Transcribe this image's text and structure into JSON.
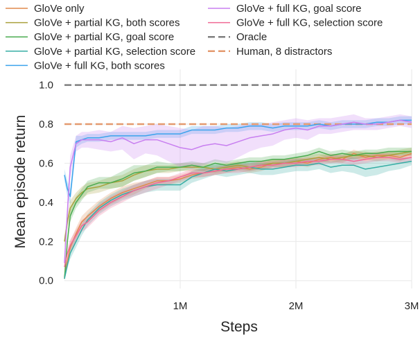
{
  "chart_data": {
    "type": "line",
    "xlabel": "Steps",
    "ylabel": "Mean episode return",
    "xlim": [
      0,
      3000000
    ],
    "ylim": [
      -0.04,
      1.08
    ],
    "xticks": [
      {
        "value": 1000000,
        "label": "1M"
      },
      {
        "value": 2000000,
        "label": "2M"
      },
      {
        "value": 3000000,
        "label": "3M"
      }
    ],
    "yticks": [
      {
        "value": 0.0,
        "label": "0.0"
      },
      {
        "value": 0.2,
        "label": "0.2"
      },
      {
        "value": 0.4,
        "label": "0.4"
      },
      {
        "value": 0.6,
        "label": "0.6"
      },
      {
        "value": 0.8,
        "label": "0.8"
      },
      {
        "value": 1.0,
        "label": "1.0"
      }
    ],
    "grid": true,
    "legend": "top",
    "x": [
      0,
      25000,
      50000,
      100000,
      150000,
      200000,
      300000,
      400000,
      500000,
      600000,
      700000,
      800000,
      900000,
      1000000,
      1100000,
      1200000,
      1300000,
      1400000,
      1500000,
      1600000,
      1700000,
      1800000,
      1900000,
      2000000,
      2100000,
      2200000,
      2300000,
      2400000,
      2500000,
      2600000,
      2700000,
      2800000,
      2900000,
      3000000
    ],
    "series": [
      {
        "name": "GloVe only",
        "color": "#e1894c",
        "values": [
          0.02,
          0.1,
          0.17,
          0.24,
          0.3,
          0.33,
          0.38,
          0.42,
          0.45,
          0.47,
          0.49,
          0.51,
          0.51,
          0.52,
          0.54,
          0.55,
          0.56,
          0.57,
          0.58,
          0.57,
          0.58,
          0.6,
          0.6,
          0.61,
          0.6,
          0.62,
          0.63,
          0.62,
          0.65,
          0.63,
          0.64,
          0.64,
          0.63,
          0.65
        ],
        "band_halfwidth": [
          0.01,
          0.02,
          0.03,
          0.03,
          0.03,
          0.03,
          0.03,
          0.03,
          0.03,
          0.03,
          0.02,
          0.02,
          0.02,
          0.02,
          0.02,
          0.02,
          0.02,
          0.02,
          0.02,
          0.02,
          0.02,
          0.02,
          0.02,
          0.02,
          0.02,
          0.02,
          0.02,
          0.02,
          0.02,
          0.02,
          0.02,
          0.02,
          0.02,
          0.02
        ]
      },
      {
        "name": "GloVe + partial KG, both scores",
        "color": "#a9a13b",
        "values": [
          0.2,
          0.3,
          0.37,
          0.42,
          0.45,
          0.47,
          0.48,
          0.5,
          0.51,
          0.54,
          0.56,
          0.57,
          0.57,
          0.58,
          0.58,
          0.58,
          0.57,
          0.58,
          0.59,
          0.58,
          0.59,
          0.6,
          0.6,
          0.61,
          0.62,
          0.63,
          0.62,
          0.63,
          0.64,
          0.64,
          0.63,
          0.64,
          0.65,
          0.66
        ],
        "band_halfwidth": [
          0.03,
          0.04,
          0.04,
          0.03,
          0.03,
          0.03,
          0.03,
          0.03,
          0.03,
          0.03,
          0.03,
          0.02,
          0.02,
          0.02,
          0.02,
          0.02,
          0.02,
          0.02,
          0.02,
          0.02,
          0.02,
          0.02,
          0.02,
          0.02,
          0.02,
          0.02,
          0.02,
          0.02,
          0.02,
          0.02,
          0.02,
          0.02,
          0.02,
          0.02
        ]
      },
      {
        "name": "GloVe + partial KG, goal score",
        "color": "#4aab4f",
        "values": [
          0.01,
          0.2,
          0.33,
          0.4,
          0.44,
          0.48,
          0.5,
          0.5,
          0.52,
          0.55,
          0.56,
          0.58,
          0.58,
          0.58,
          0.59,
          0.58,
          0.6,
          0.59,
          0.6,
          0.61,
          0.61,
          0.62,
          0.62,
          0.63,
          0.64,
          0.66,
          0.64,
          0.65,
          0.64,
          0.65,
          0.65,
          0.66,
          0.66,
          0.66
        ],
        "band_halfwidth": [
          0.01,
          0.03,
          0.03,
          0.03,
          0.03,
          0.03,
          0.03,
          0.03,
          0.04,
          0.04,
          0.03,
          0.03,
          0.02,
          0.02,
          0.02,
          0.02,
          0.02,
          0.02,
          0.02,
          0.02,
          0.02,
          0.02,
          0.02,
          0.02,
          0.02,
          0.02,
          0.02,
          0.02,
          0.02,
          0.02,
          0.02,
          0.02,
          0.02,
          0.02
        ]
      },
      {
        "name": "GloVe + partial KG, selection score",
        "color": "#36ada4",
        "values": [
          0.01,
          0.08,
          0.14,
          0.2,
          0.26,
          0.31,
          0.37,
          0.41,
          0.44,
          0.46,
          0.48,
          0.49,
          0.49,
          0.49,
          0.53,
          0.55,
          0.57,
          0.56,
          0.57,
          0.58,
          0.57,
          0.57,
          0.58,
          0.59,
          0.59,
          0.6,
          0.58,
          0.59,
          0.59,
          0.57,
          0.58,
          0.59,
          0.6,
          0.61
        ],
        "band_halfwidth": [
          0.01,
          0.02,
          0.03,
          0.03,
          0.03,
          0.03,
          0.03,
          0.03,
          0.03,
          0.03,
          0.03,
          0.03,
          0.03,
          0.03,
          0.03,
          0.03,
          0.03,
          0.03,
          0.03,
          0.03,
          0.03,
          0.03,
          0.03,
          0.03,
          0.03,
          0.03,
          0.03,
          0.03,
          0.04,
          0.04,
          0.04,
          0.03,
          0.03,
          0.02
        ]
      },
      {
        "name": "GloVe + full KG, both scores",
        "color": "#3ba3ec",
        "values": [
          0.54,
          0.47,
          0.43,
          0.71,
          0.72,
          0.73,
          0.73,
          0.74,
          0.74,
          0.74,
          0.74,
          0.75,
          0.75,
          0.75,
          0.77,
          0.77,
          0.77,
          0.78,
          0.78,
          0.79,
          0.79,
          0.78,
          0.79,
          0.79,
          0.79,
          0.8,
          0.79,
          0.8,
          0.8,
          0.8,
          0.81,
          0.81,
          0.82,
          0.82
        ],
        "band_halfwidth": [
          0.03,
          0.04,
          0.04,
          0.03,
          0.02,
          0.02,
          0.02,
          0.02,
          0.02,
          0.02,
          0.02,
          0.02,
          0.02,
          0.02,
          0.02,
          0.02,
          0.02,
          0.02,
          0.02,
          0.02,
          0.02,
          0.02,
          0.02,
          0.02,
          0.02,
          0.02,
          0.02,
          0.02,
          0.02,
          0.02,
          0.02,
          0.02,
          0.02,
          0.02
        ]
      },
      {
        "name": "GloVe + full KG, goal score",
        "color": "#c87ff0",
        "values": [
          0.09,
          0.35,
          0.58,
          0.7,
          0.72,
          0.72,
          0.72,
          0.71,
          0.73,
          0.7,
          0.72,
          0.72,
          0.7,
          0.68,
          0.67,
          0.69,
          0.7,
          0.69,
          0.71,
          0.73,
          0.74,
          0.75,
          0.77,
          0.78,
          0.77,
          0.79,
          0.79,
          0.8,
          0.81,
          0.8,
          0.8,
          0.81,
          0.82,
          0.81
        ],
        "band_halfwidth": [
          0.03,
          0.06,
          0.06,
          0.04,
          0.04,
          0.04,
          0.05,
          0.05,
          0.06,
          0.08,
          0.07,
          0.08,
          0.09,
          0.1,
          0.1,
          0.1,
          0.09,
          0.09,
          0.08,
          0.07,
          0.06,
          0.06,
          0.05,
          0.05,
          0.05,
          0.04,
          0.04,
          0.04,
          0.04,
          0.03,
          0.03,
          0.03,
          0.03,
          0.03
        ]
      },
      {
        "name": "GloVe + full KG, selection score",
        "color": "#f06894",
        "values": [
          0.07,
          0.14,
          0.18,
          0.23,
          0.28,
          0.3,
          0.36,
          0.4,
          0.43,
          0.46,
          0.48,
          0.5,
          0.51,
          0.53,
          0.55,
          0.55,
          0.56,
          0.57,
          0.57,
          0.58,
          0.59,
          0.59,
          0.6,
          0.6,
          0.61,
          0.61,
          0.62,
          0.62,
          0.61,
          0.62,
          0.63,
          0.63,
          0.62,
          0.63
        ],
        "band_halfwidth": [
          0.02,
          0.03,
          0.03,
          0.03,
          0.03,
          0.03,
          0.03,
          0.03,
          0.03,
          0.03,
          0.03,
          0.03,
          0.02,
          0.02,
          0.02,
          0.02,
          0.02,
          0.02,
          0.02,
          0.02,
          0.02,
          0.02,
          0.02,
          0.02,
          0.02,
          0.02,
          0.02,
          0.02,
          0.02,
          0.02,
          0.02,
          0.02,
          0.02,
          0.02
        ]
      }
    ],
    "reference_lines": [
      {
        "name": "Oracle",
        "y": 1.0,
        "color": "#7f7f7f",
        "style": "dashed"
      },
      {
        "name": "Human, 8 distractors",
        "y": 0.8,
        "color": "#e49a6f",
        "style": "dashed"
      }
    ]
  }
}
